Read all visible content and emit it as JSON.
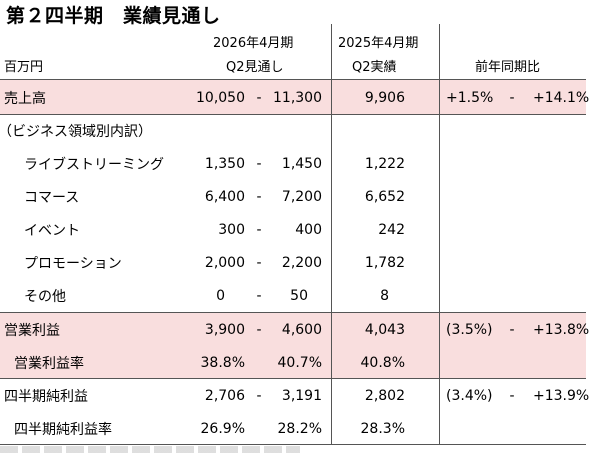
{
  "title": "第２四半期　業績見通し",
  "header": {
    "unit": "百万円",
    "col1_line1": "2026年4月期",
    "col1_line2": "Q2見通し",
    "col2_line1": "2025年4月期",
    "col2_line2": "Q2実績",
    "col3": "前年同期比"
  },
  "rows": [
    {
      "label": "売上高",
      "low": "10,050",
      "dash": "-",
      "high": "11,300",
      "prev": "9,906",
      "yoy_low": "+1.5%",
      "yoy_dash": "-",
      "yoy_high": "+14.1%"
    },
    {
      "label": "（ビジネス領域別内訳）"
    },
    {
      "label": "ライブストリーミング",
      "low": "1,350",
      "dash": "-",
      "high": "1,450",
      "prev": "1,222"
    },
    {
      "label": "コマース",
      "low": "6,400",
      "dash": "-",
      "high": "7,200",
      "prev": "6,652"
    },
    {
      "label": "イベント",
      "low": "300",
      "dash": "-",
      "high": "400",
      "prev": "242"
    },
    {
      "label": "プロモーション",
      "low": "2,000",
      "dash": "-",
      "high": "2,200",
      "prev": "1,782"
    },
    {
      "label": "その他",
      "low": "0",
      "dash": "-",
      "high": "50",
      "prev": "8"
    },
    {
      "label": "営業利益",
      "low": "3,900",
      "dash": "-",
      "high": "4,600",
      "prev": "4,043",
      "yoy_low": "(3.5%)",
      "yoy_dash": "-",
      "yoy_high": "+13.8%"
    },
    {
      "label": "営業利益率",
      "low": "38.8%",
      "dash": "",
      "high": "40.7%",
      "prev": "40.8%"
    },
    {
      "label": "四半期純利益",
      "low": "2,706",
      "dash": "-",
      "high": "3,191",
      "prev": "2,802",
      "yoy_low": "(3.4%)",
      "yoy_dash": "-",
      "yoy_high": "+13.9%"
    },
    {
      "label": "四半期純利益率",
      "low": "26.9%",
      "dash": "",
      "high": "28.2%",
      "prev": "28.3%"
    }
  ],
  "colors": {
    "highlight": "#f9dede",
    "border": "#555555"
  }
}
